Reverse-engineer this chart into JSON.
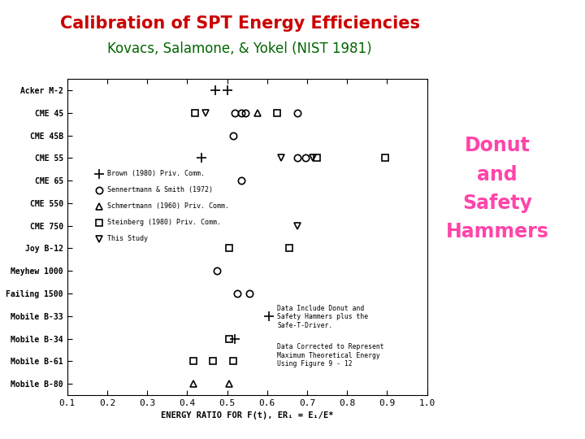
{
  "title1": "Calibration of SPT Energy Efficiencies",
  "title2": "Kovacs, Salamone, & Yokel (NIST 1981)",
  "title1_color": "#cc0000",
  "title2_color": "#006600",
  "side_label": "Donut\nand\nSafety\nHammers",
  "side_label_color": "#ff44aa",
  "xlabel": "ENERGY RATIO FOR F(t), ERᵢ = Eᵢ/E*",
  "xlim": [
    0.1,
    1.0
  ],
  "xticks": [
    0.1,
    0.2,
    0.3,
    0.4,
    0.5,
    0.6,
    0.7,
    0.8,
    0.9,
    1.0
  ],
  "ytick_labels": [
    "Acker M-2",
    "CME 45",
    "CME 45B",
    "CME 55",
    "CME 65",
    "CME 550",
    "CME 750",
    "Joy B-12",
    "Meyhew 1000",
    "Failing 1500",
    "Mobile B-33",
    "Mobile B-34",
    "Mobile B-61",
    "Mobile B-80"
  ],
  "legend_items": [
    {
      "marker": "+",
      "label": "Brown (1980) Priv. Comm."
    },
    {
      "marker": "o",
      "label": "Sennertmann & Smith (1972)"
    },
    {
      "marker": "^",
      "label": "Schmertmann (1960) Priv. Comm."
    },
    {
      "marker": "s",
      "label": "Steinberg (1980) Priv. Comm."
    },
    {
      "marker": "v",
      "label": "This Study"
    }
  ],
  "annotation1": "Data Include Donut and\nSafety Hammers plus the\nSafe-T-Driver.",
  "annotation2": "Data Corrected to Represent\nMaximum Theoretical Energy\nUsing Figure 9 - 12",
  "data_points": [
    {
      "rig": "Acker M-2",
      "marker": "+",
      "x": [
        0.47,
        0.5
      ]
    },
    {
      "rig": "CME 45",
      "marker": "s",
      "x": [
        0.42
      ]
    },
    {
      "rig": "CME 45",
      "marker": "v",
      "x": [
        0.445
      ]
    },
    {
      "rig": "CME 45",
      "marker": "o",
      "x": [
        0.52,
        0.535,
        0.545
      ]
    },
    {
      "rig": "CME 45",
      "marker": "^",
      "x": [
        0.575
      ]
    },
    {
      "rig": "CME 45",
      "marker": "s",
      "x": [
        0.625
      ]
    },
    {
      "rig": "CME 45",
      "marker": "o",
      "x": [
        0.675
      ]
    },
    {
      "rig": "CME 45B",
      "marker": "o",
      "x": [
        0.515
      ]
    },
    {
      "rig": "CME 55",
      "marker": "+",
      "x": [
        0.435
      ]
    },
    {
      "rig": "CME 55",
      "marker": "v",
      "x": [
        0.635
      ]
    },
    {
      "rig": "CME 55",
      "marker": "o",
      "x": [
        0.675,
        0.695
      ]
    },
    {
      "rig": "CME 55",
      "marker": "v",
      "x": [
        0.715
      ]
    },
    {
      "rig": "CME 55",
      "marker": "s",
      "x": [
        0.725
      ]
    },
    {
      "rig": "CME 55",
      "marker": "s",
      "x": [
        0.895
      ]
    },
    {
      "rig": "CME 65",
      "marker": "o",
      "x": [
        0.535
      ]
    },
    {
      "rig": "CME 750",
      "marker": "v",
      "x": [
        0.675
      ]
    },
    {
      "rig": "Joy B-12",
      "marker": "s",
      "x": [
        0.505,
        0.655
      ]
    },
    {
      "rig": "Meyhew 1000",
      "marker": "o",
      "x": [
        0.475
      ]
    },
    {
      "rig": "Failing 1500",
      "marker": "o",
      "x": [
        0.525,
        0.555
      ]
    },
    {
      "rig": "Mobile B-33",
      "marker": "+",
      "x": [
        0.605
      ]
    },
    {
      "rig": "Mobile B-34",
      "marker": "s",
      "x": [
        0.505
      ]
    },
    {
      "rig": "Mobile B-34",
      "marker": "+",
      "x": [
        0.52
      ]
    },
    {
      "rig": "Mobile B-61",
      "marker": "s",
      "x": [
        0.415,
        0.465,
        0.515
      ]
    },
    {
      "rig": "Mobile B-80",
      "marker": "^",
      "x": [
        0.415,
        0.505
      ]
    }
  ],
  "marker_size_plus": 9,
  "marker_size_other": 6,
  "bg_color": "#ffffff",
  "plot_bg_color": "#ffffff"
}
